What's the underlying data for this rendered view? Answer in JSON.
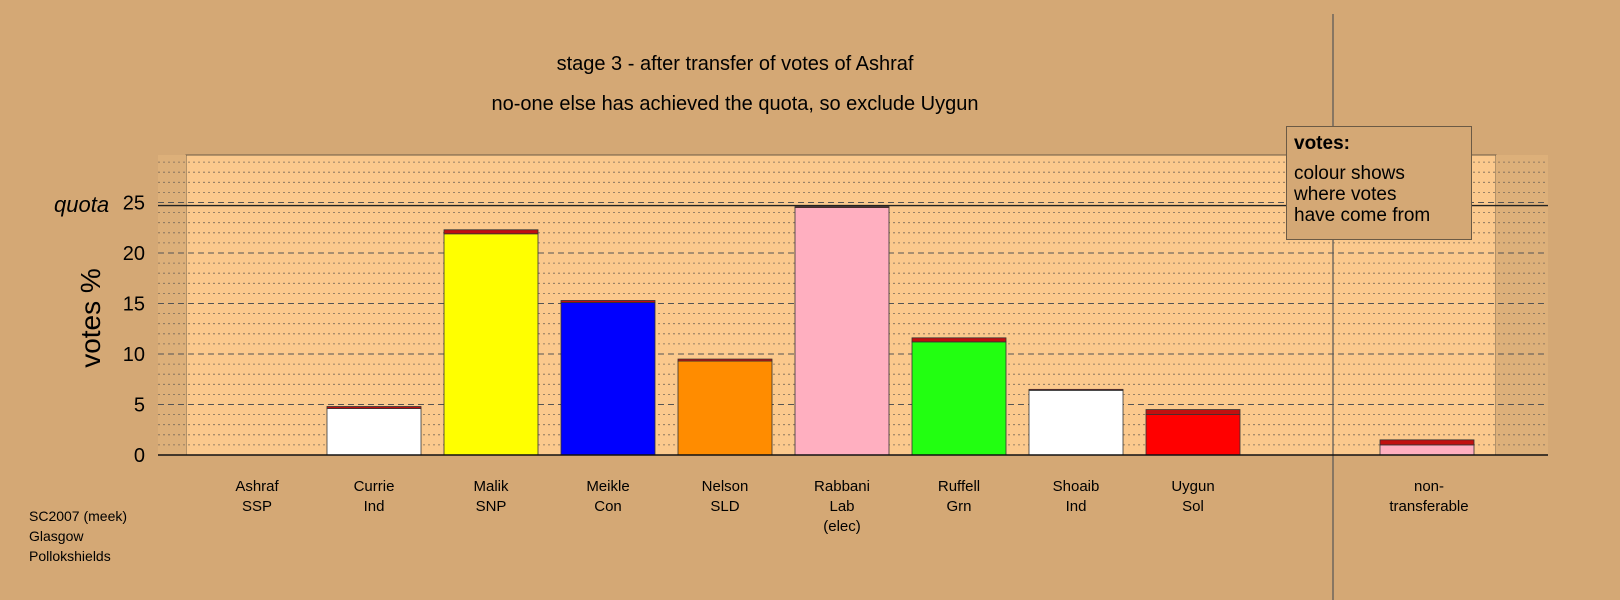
{
  "title_line1": "stage 3 - after transfer of votes of Ashraf",
  "title_line2": "no-one else has achieved the quota, so exclude Uygun",
  "legend": {
    "title": "votes:",
    "lines": [
      "colour shows",
      "where votes",
      "have come from"
    ]
  },
  "footer": [
    "SC2007 (meek)",
    "Glasgow",
    "Pollokshields"
  ],
  "colors": {
    "background": "#d4a875",
    "plot_area": "#fbc98d",
    "transfer_ashraf": "#c01010"
  },
  "chart_data": {
    "type": "bar",
    "ylabel": "votes %",
    "ylim": [
      0,
      30
    ],
    "yticks": [
      0,
      5,
      10,
      15,
      20,
      25
    ],
    "quota": 24.7,
    "quota_label": "quota",
    "bars": [
      {
        "name": "Ashraf",
        "party": "SSP",
        "note": "",
        "color": "#ffffff",
        "own": 0.0,
        "transferred": 0.0
      },
      {
        "name": "Currie",
        "party": "Ind",
        "note": "",
        "color": "#ffffff",
        "own": 4.6,
        "transferred": 0.2
      },
      {
        "name": "Malik",
        "party": "SNP",
        "note": "",
        "color": "#ffff00",
        "own": 21.9,
        "transferred": 0.4
      },
      {
        "name": "Meikle",
        "party": "Con",
        "note": "",
        "color": "#0000ff",
        "own": 15.1,
        "transferred": 0.2
      },
      {
        "name": "Nelson",
        "party": "SLD",
        "note": "",
        "color": "#ff8c00",
        "own": 9.3,
        "transferred": 0.2
      },
      {
        "name": "Rabbani",
        "party": "Lab",
        "note": "(elec)",
        "color": "#ffafc0",
        "own": 24.5,
        "transferred": 0.1
      },
      {
        "name": "Ruffell",
        "party": "Grn",
        "note": "",
        "color": "#22ff11",
        "own": 11.2,
        "transferred": 0.4
      },
      {
        "name": "Shoaib",
        "party": "Ind",
        "note": "",
        "color": "#ffffff",
        "own": 6.4,
        "transferred": 0.1
      },
      {
        "name": "Uygun",
        "party": "Sol",
        "note": "",
        "color": "#ff0000",
        "own": 4.0,
        "transferred": 0.5
      }
    ],
    "nontransferable": {
      "label1": "non-",
      "label2": "transferable",
      "color": "#ffafc0",
      "own": 1.0,
      "transferred": 0.5
    }
  }
}
